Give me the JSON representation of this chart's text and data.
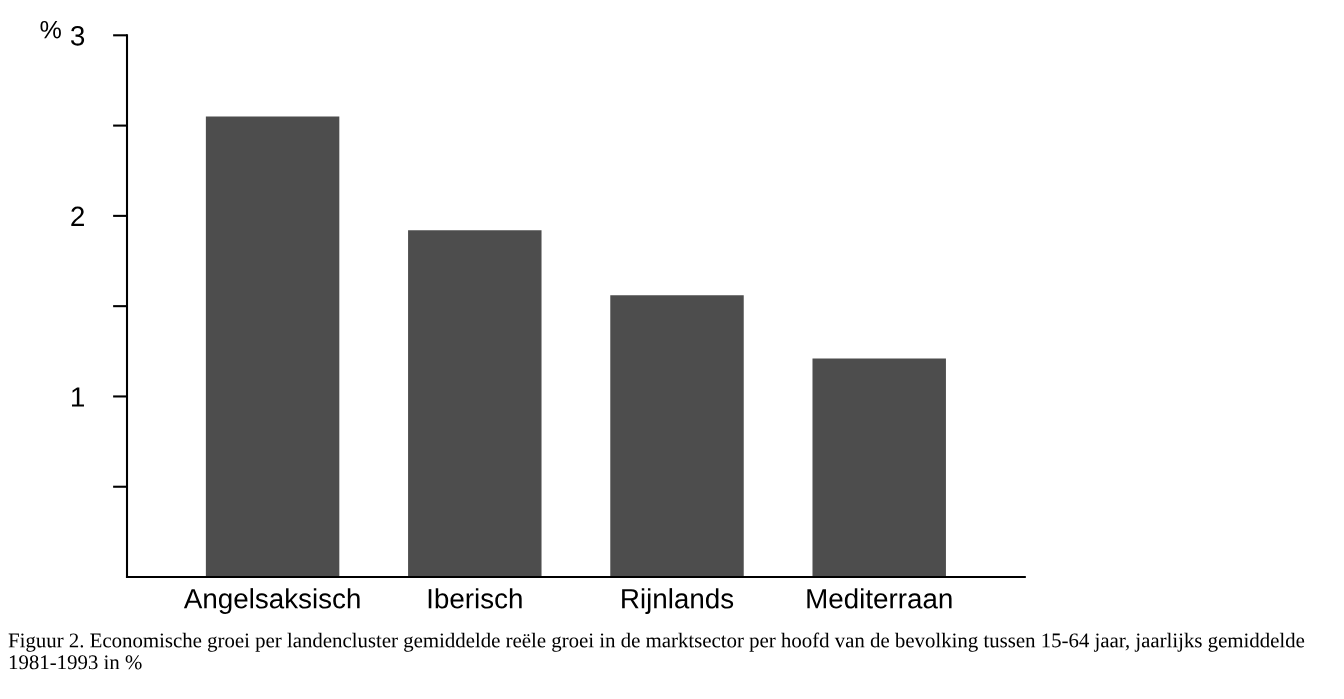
{
  "chart_data": {
    "type": "bar",
    "ylabel": "%",
    "categories": [
      "Angelsaksisch",
      "Iberisch",
      "Rijnlands",
      "Mediterraan"
    ],
    "values": [
      2.55,
      1.92,
      1.56,
      1.21
    ],
    "color": "#4d4d4d",
    "ylim": [
      0,
      3
    ],
    "yticks": [
      {
        "value": 0.5,
        "label": null
      },
      1,
      {
        "value": 1.5,
        "label": null
      },
      2,
      {
        "value": 2.5,
        "label": null
      },
      3
    ],
    "grid": false,
    "legend": false,
    "annotations": [
      "Figuur 2. Economische groei per landencluster gemiddelde reële groei in de marktsector per hoofd van de bevolking tussen 15-64 jaar, jaarlijks gemiddelde 1981-1993 in %"
    ]
  }
}
